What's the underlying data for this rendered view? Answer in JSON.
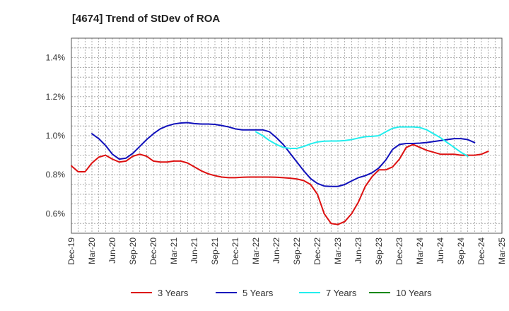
{
  "chart_data": {
    "type": "line",
    "title": "[4674]  Trend of StDev of ROA",
    "xlabel": "",
    "ylabel": "",
    "ylim": [
      0.5,
      1.5
    ],
    "y_ticks": [
      "0.6%",
      "0.8%",
      "1.0%",
      "1.2%",
      "1.4%"
    ],
    "y_tick_values": [
      0.6,
      0.8,
      1.0,
      1.2,
      1.4
    ],
    "x_ticks": [
      "Dec-19",
      "Mar-20",
      "Jun-20",
      "Sep-20",
      "Dec-20",
      "Mar-21",
      "Jun-21",
      "Sep-21",
      "Dec-21",
      "Mar-22",
      "Jun-22",
      "Sep-22",
      "Dec-22",
      "Mar-23",
      "Jun-23",
      "Sep-23",
      "Dec-23",
      "Mar-24",
      "Jun-24",
      "Sep-24",
      "Dec-24",
      "Mar-25"
    ],
    "grid": true,
    "legend_position": "bottom",
    "series": [
      {
        "name": "3 Years",
        "color": "#dd1111",
        "start_index": 0,
        "values": [
          0.845,
          0.815,
          0.815,
          0.86,
          0.89,
          0.9,
          0.88,
          0.865,
          0.87,
          0.895,
          0.905,
          0.895,
          0.87,
          0.865,
          0.865,
          0.87,
          0.87,
          0.86,
          0.84,
          0.82,
          0.805,
          0.795,
          0.788,
          0.785,
          0.785,
          0.787,
          0.788,
          0.788,
          0.788,
          0.788,
          0.787,
          0.785,
          0.782,
          0.778,
          0.77,
          0.75,
          0.7,
          0.6,
          0.55,
          0.545,
          0.56,
          0.6,
          0.66,
          0.74,
          0.79,
          0.825,
          0.825,
          0.84,
          0.88,
          0.94,
          0.955,
          0.94,
          0.925,
          0.915,
          0.905,
          0.905,
          0.905,
          0.9,
          0.9,
          0.9,
          0.905,
          0.92
        ]
      },
      {
        "name": "5 Years",
        "color": "#1111bb",
        "start_index": 3,
        "values": [
          1.01,
          0.985,
          0.95,
          0.905,
          0.88,
          0.885,
          0.91,
          0.945,
          0.98,
          1.01,
          1.035,
          1.05,
          1.06,
          1.065,
          1.067,
          1.062,
          1.06,
          1.06,
          1.058,
          1.052,
          1.045,
          1.035,
          1.03,
          1.03,
          1.03,
          1.03,
          1.02,
          0.99,
          0.955,
          0.91,
          0.865,
          0.82,
          0.78,
          0.755,
          0.742,
          0.74,
          0.74,
          0.75,
          0.768,
          0.785,
          0.795,
          0.81,
          0.835,
          0.875,
          0.93,
          0.955,
          0.96,
          0.96,
          0.962,
          0.965,
          0.97,
          0.975,
          0.98,
          0.985,
          0.985,
          0.98,
          0.965
        ]
      },
      {
        "name": "7 Years",
        "color": "#22eeee",
        "start_index": 27,
        "values": [
          1.02,
          1.0,
          0.975,
          0.955,
          0.94,
          0.935,
          0.935,
          0.945,
          0.958,
          0.968,
          0.972,
          0.973,
          0.973,
          0.975,
          0.98,
          0.988,
          0.995,
          0.997,
          1.0,
          1.02,
          1.038,
          1.045,
          1.045,
          1.045,
          1.042,
          1.03,
          1.01,
          0.99,
          0.965,
          0.94,
          0.915,
          0.895
        ]
      },
      {
        "name": "10 Years",
        "color": "#118811",
        "start_index": 0,
        "values": []
      }
    ]
  }
}
